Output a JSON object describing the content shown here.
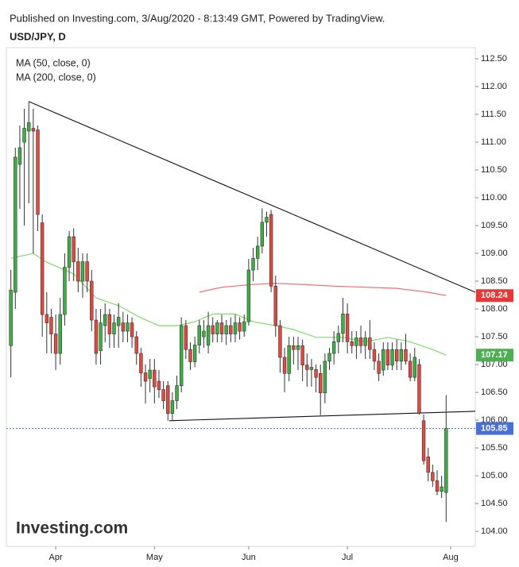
{
  "header": "Published on Investing.com, 3/Aug/2020 - 8:13:49 GMT, Powered by TradingView.",
  "logo": "Investing.com",
  "chart_data": {
    "type": "candlestick",
    "title": "USD/JPY, D",
    "up_color": "#3cb043",
    "down_color": "#e5493d",
    "open": [
      107.34,
      108.3,
      110.6,
      111.0,
      111.2,
      111.25,
      111.22,
      109.55,
      107.9,
      107.85,
      107.55,
      107.2,
      107.9,
      108.75,
      109.3,
      108.85,
      108.5,
      108.85,
      108.5,
      107.8,
      107.25,
      107.7,
      107.9,
      107.55,
      107.7,
      107.75,
      107.6,
      107.75,
      107.5,
      107.2,
      106.85,
      106.75,
      106.9,
      106.7,
      106.55,
      106.62,
      106.12,
      106.35,
      106.62,
      107.7,
      107.27,
      107.05,
      107.35,
      107.5,
      107.35,
      107.7,
      107.55,
      107.75,
      107.55,
      107.7,
      107.55,
      107.75,
      107.6,
      107.77,
      108.7,
      108.91,
      109.13,
      109.56,
      109.7,
      108.41,
      107.7,
      107.13,
      106.84,
      107.34,
      107.27,
      107.34,
      106.99,
      106.91,
      106.91,
      106.84,
      106.49,
      107.06,
      107.2,
      107.41,
      107.56,
      107.91,
      107.41,
      107.34,
      107.48,
      107.34,
      107.48,
      107.27,
      107.06,
      106.9,
      107.27,
      106.99,
      107.27,
      107.06,
      107.27,
      107.06,
      106.77,
      107.0,
      105.99,
      105.34,
      105.06,
      104.91,
      104.72,
      104.7
    ],
    "high": [
      108.7,
      110.9,
      111.3,
      111.6,
      111.73,
      111.6,
      111.3,
      109.7,
      108.3,
      108.0,
      107.9,
      108.2,
      109.0,
      109.4,
      109.45,
      109.1,
      109.0,
      109.0,
      108.7,
      108.0,
      108.0,
      108.1,
      108.0,
      107.9,
      108.1,
      107.95,
      107.9,
      107.85,
      107.6,
      107.3,
      107.0,
      107.1,
      107.1,
      106.9,
      106.7,
      106.7,
      106.5,
      106.8,
      107.85,
      107.8,
      107.4,
      107.5,
      107.8,
      107.8,
      107.95,
      107.85,
      107.8,
      107.9,
      107.8,
      107.85,
      107.9,
      107.85,
      107.9,
      108.9,
      109.1,
      109.3,
      109.81,
      109.75,
      109.78,
      108.6,
      107.8,
      107.3,
      107.5,
      107.5,
      107.5,
      107.45,
      107.2,
      107.1,
      107.0,
      107.0,
      107.2,
      107.3,
      107.6,
      107.7,
      108.2,
      108.1,
      107.6,
      107.6,
      107.7,
      107.6,
      107.8,
      107.4,
      107.2,
      107.4,
      107.4,
      107.4,
      107.45,
      107.4,
      107.55,
      107.2,
      107.3,
      107.1,
      106.1,
      105.5,
      105.2,
      105.1,
      105.0,
      106.45
    ],
    "low": [
      106.77,
      108.0,
      109.8,
      109.5,
      109.9,
      109.0,
      109.4,
      107.5,
      107.2,
      107.2,
      106.9,
      107.0,
      107.7,
      108.5,
      108.5,
      108.3,
      108.2,
      108.3,
      107.6,
      107.0,
      107.0,
      107.4,
      107.3,
      107.3,
      107.3,
      107.4,
      107.4,
      107.3,
      107.0,
      106.6,
      106.3,
      106.5,
      106.3,
      106.4,
      106.2,
      105.99,
      106.0,
      106.2,
      106.5,
      107.1,
      106.9,
      106.95,
      107.2,
      107.3,
      107.2,
      107.4,
      107.4,
      107.4,
      107.35,
      107.4,
      107.4,
      107.45,
      107.5,
      107.7,
      108.5,
      108.7,
      109.0,
      109.3,
      108.3,
      107.5,
      106.85,
      106.5,
      106.7,
      107.0,
      106.9,
      106.7,
      106.6,
      106.6,
      106.5,
      106.09,
      106.3,
      106.9,
      107.0,
      107.2,
      107.4,
      107.2,
      107.2,
      107.1,
      107.2,
      107.1,
      107.1,
      106.9,
      106.7,
      106.8,
      106.9,
      106.9,
      106.9,
      106.9,
      107.0,
      106.7,
      106.7,
      106.1,
      105.2,
      104.9,
      104.8,
      104.65,
      104.6,
      104.17
    ],
    "close": [
      108.34,
      110.73,
      110.9,
      111.25,
      111.35,
      111.2,
      109.7,
      107.9,
      107.75,
      107.55,
      107.2,
      107.9,
      108.75,
      109.3,
      108.85,
      108.5,
      108.85,
      108.5,
      107.8,
      107.2,
      107.75,
      107.9,
      107.55,
      107.75,
      107.85,
      107.6,
      107.75,
      107.5,
      107.2,
      106.85,
      106.7,
      106.9,
      106.6,
      106.55,
      106.35,
      106.12,
      106.35,
      106.62,
      107.7,
      107.27,
      107.05,
      107.35,
      107.7,
      107.6,
      107.7,
      107.55,
      107.75,
      107.55,
      107.7,
      107.55,
      107.75,
      107.6,
      107.77,
      108.7,
      108.91,
      109.13,
      109.56,
      109.65,
      108.41,
      107.7,
      107.13,
      106.84,
      107.34,
      107.27,
      107.34,
      106.99,
      106.91,
      106.95,
      106.77,
      106.49,
      107.06,
      107.2,
      107.41,
      107.56,
      107.91,
      107.41,
      107.34,
      107.48,
      107.34,
      107.48,
      107.27,
      107.06,
      106.84,
      107.27,
      106.99,
      107.27,
      107.06,
      107.27,
      107.06,
      106.77,
      107.13,
      106.13,
      105.27,
      105.06,
      104.91,
      104.72,
      104.8,
      105.85
    ],
    "close_color": "#4a6fd8",
    "series": [
      {
        "name": "MA (50, close, 0)",
        "color": "#7fdc6a",
        "box_color": "#4caf50",
        "x": [
          0,
          5,
          8,
          14,
          19,
          24,
          29,
          33,
          37,
          41,
          45,
          50,
          54,
          59,
          63,
          68,
          74,
          79,
          84,
          89,
          94,
          97
        ],
        "values": [
          108.91,
          109.0,
          108.84,
          108.63,
          108.2,
          108.06,
          107.84,
          107.7,
          107.7,
          107.77,
          107.91,
          107.91,
          107.77,
          107.7,
          107.63,
          107.49,
          107.49,
          107.41,
          107.49,
          107.41,
          107.27,
          107.17
        ]
      },
      {
        "name": "MA (200, close, 0)",
        "color": "#f06a6a",
        "box_color": "#e53935",
        "x": [
          42,
          47,
          54,
          59,
          65,
          72,
          79,
          86,
          93,
          97
        ],
        "values": [
          108.3,
          108.39,
          108.44,
          108.46,
          108.44,
          108.41,
          108.39,
          108.37,
          108.3,
          108.24
        ]
      }
    ],
    "trendlines": [
      {
        "x": [
          4,
          103.5
        ],
        "values": [
          111.73,
          108.3
        ]
      },
      {
        "x": [
          35.3,
          103.5
        ],
        "values": [
          105.99,
          106.16
        ]
      }
    ],
    "xlim": [
      -1,
      103.5
    ],
    "xticks": [
      {
        "value": 10,
        "label": "Apr"
      },
      {
        "value": 32,
        "label": "May"
      },
      {
        "value": 53,
        "label": "Jun"
      },
      {
        "value": 75,
        "label": "Jul"
      },
      {
        "value": 98,
        "label": "Aug"
      }
    ],
    "ylim": [
      103.73,
      112.7
    ],
    "yticks": [
      {
        "value": 104,
        "label": "104.00"
      },
      {
        "value": 104.5,
        "label": "104.50"
      },
      {
        "value": 105,
        "label": "105.00"
      },
      {
        "value": 105.5,
        "label": "105.50"
      },
      {
        "value": 106,
        "label": "106.00"
      },
      {
        "value": 106.5,
        "label": "106.50"
      },
      {
        "value": 107,
        "label": "107.00"
      },
      {
        "value": 107.5,
        "label": "107.50"
      },
      {
        "value": 108,
        "label": "108.00"
      },
      {
        "value": 108.5,
        "label": "108.50"
      },
      {
        "value": 109,
        "label": "109.00"
      },
      {
        "value": 109.5,
        "label": "109.50"
      },
      {
        "value": 110,
        "label": "110.00"
      },
      {
        "value": 110.5,
        "label": "110.50"
      },
      {
        "value": 111,
        "label": "111.00"
      },
      {
        "value": 111.5,
        "label": "111.50"
      },
      {
        "value": 112,
        "label": "112.00"
      },
      {
        "value": 112.5,
        "label": "112.50"
      }
    ]
  }
}
